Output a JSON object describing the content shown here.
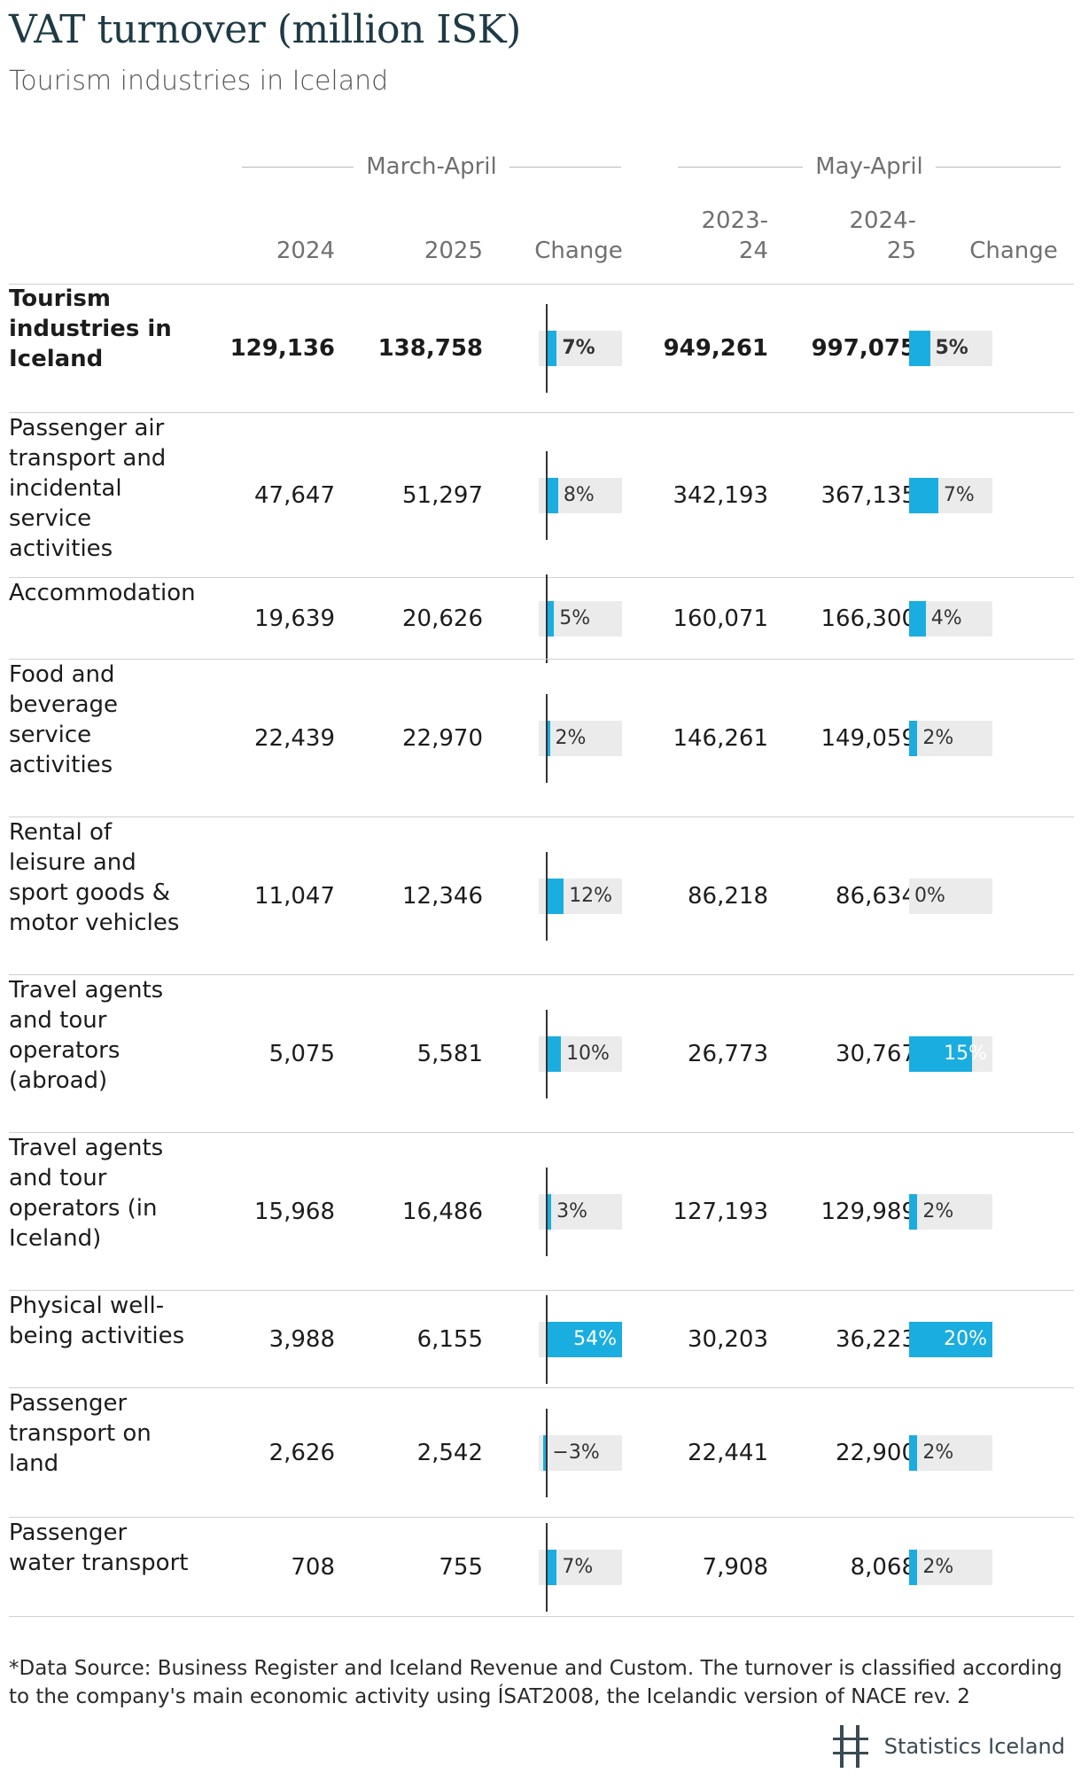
{
  "header": {
    "title": "VAT turnover (million ISK)",
    "subtitle": "Tourism industries in Iceland"
  },
  "groups": {
    "period1": "March-April",
    "period2": "May-April"
  },
  "columns": {
    "c2024": "2024",
    "c2025": "2025",
    "change1": "Change",
    "c2023_24": "2023-\n24",
    "c2024_25": "2024-\n25",
    "change2": "Change"
  },
  "chart_data": {
    "type": "table",
    "title": "VAT turnover (million ISK)",
    "subtitle": "Tourism industries in Iceland",
    "columns": [
      "2024",
      "2025",
      "Change",
      "2023-24",
      "2024-25",
      "Change"
    ],
    "rows": [
      {
        "label": "Tourism industries in Iceland",
        "bold": true,
        "v2024": "129,136",
        "v2025": "138,758",
        "change1": 7,
        "change1_label": "7%",
        "v2023_24": "949,261",
        "v2024_25": "997,075",
        "change2": 5,
        "change2_label": "5%"
      },
      {
        "label": "Passenger air transport and incidental service activities",
        "bold": false,
        "v2024": "47,647",
        "v2025": "51,297",
        "change1": 8,
        "change1_label": "8%",
        "v2023_24": "342,193",
        "v2024_25": "367,135",
        "change2": 7,
        "change2_label": "7%"
      },
      {
        "label": "Accommodation",
        "bold": false,
        "v2024": "19,639",
        "v2025": "20,626",
        "change1": 5,
        "change1_label": "5%",
        "v2023_24": "160,071",
        "v2024_25": "166,300",
        "change2": 4,
        "change2_label": "4%"
      },
      {
        "label": "Food and beverage service activities",
        "bold": false,
        "v2024": "22,439",
        "v2025": "22,970",
        "change1": 2,
        "change1_label": "2%",
        "v2023_24": "146,261",
        "v2024_25": "149,059",
        "change2": 2,
        "change2_label": "2%"
      },
      {
        "label": "Rental of leisure and sport goods & motor vehicles",
        "bold": false,
        "v2024": "11,047",
        "v2025": "12,346",
        "change1": 12,
        "change1_label": "12%",
        "v2023_24": "86,218",
        "v2024_25": "86,634",
        "change2": 0,
        "change2_label": "0%"
      },
      {
        "label": "Travel agents and tour operators (abroad)",
        "bold": false,
        "v2024": "5,075",
        "v2025": "5,581",
        "change1": 10,
        "change1_label": "10%",
        "v2023_24": "26,773",
        "v2024_25": "30,767",
        "change2": 15,
        "change2_label": "15%"
      },
      {
        "label": "Travel agents and tour operators (in Iceland)",
        "bold": false,
        "v2024": "15,968",
        "v2025": "16,486",
        "change1": 3,
        "change1_label": "3%",
        "v2023_24": "127,193",
        "v2024_25": "129,989",
        "change2": 2,
        "change2_label": "2%"
      },
      {
        "label": "Physical well-being activities",
        "bold": false,
        "v2024": "3,988",
        "v2025": "6,155",
        "change1": 54,
        "change1_label": "54%",
        "v2023_24": "30,203",
        "v2024_25": "36,223",
        "change2": 20,
        "change2_label": "20%"
      },
      {
        "label": "Passenger transport on land",
        "bold": false,
        "v2024": "2,626",
        "v2025": "2,542",
        "change1": -3,
        "change1_label": "−3%",
        "v2023_24": "22,441",
        "v2024_25": "22,900",
        "change2": 2,
        "change2_label": "2%"
      },
      {
        "label": "Passenger water transport",
        "bold": false,
        "v2024": "708",
        "v2025": "755",
        "change1": 7,
        "change1_label": "7%",
        "v2023_24": "7,908",
        "v2024_25": "8,068",
        "change2": 2,
        "change2_label": "2%"
      }
    ],
    "change1_range": [
      -6,
      54
    ],
    "change2_range": [
      0,
      20
    ]
  },
  "footer": {
    "note": "*Data Source: Business Register and Iceland Revenue and Custom. The turnover is classified according to the company's main economic activity using ÍSAT2008, the Icelandic version of NACE rev. 2",
    "logo_text": "Statistics Iceland",
    "logo_icon": "statistics-iceland-logo-icon",
    "accent_color": "#1aade0"
  }
}
